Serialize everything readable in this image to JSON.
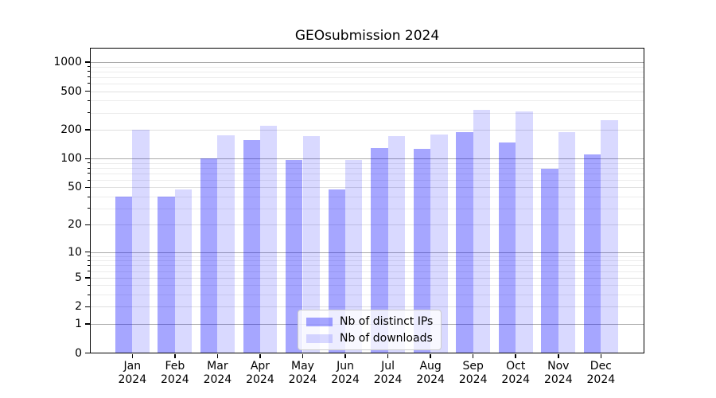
{
  "figure": {
    "title": "GEOsubmission 2024",
    "background": "#ffffff"
  },
  "chart_data": {
    "type": "bar",
    "title": "GEOsubmission 2024",
    "categories": [
      "Jan",
      "Feb",
      "Mar",
      "Apr",
      "May",
      "Jun",
      "Jul",
      "Aug",
      "Sep",
      "Oct",
      "Nov",
      "Dec"
    ],
    "year_label": "2024",
    "series": [
      {
        "key": "distinct-ips",
        "name": "Nb of distinct IPs",
        "color": "rgba(0,0,255,0.35)",
        "values": [
          40,
          40,
          100,
          155,
          96,
          48,
          128,
          126,
          190,
          148,
          78,
          110
        ]
      },
      {
        "key": "downloads",
        "name": "Nb of downloads",
        "color": "rgba(0,0,255,0.15)",
        "values": [
          200,
          48,
          175,
          220,
          170,
          96,
          173,
          178,
          318,
          308,
          190,
          252
        ]
      }
    ],
    "xlabel": "",
    "ylabel": "",
    "y_scale": "log10(value+1)",
    "y_ticks_labeled": [
      0,
      1,
      2,
      5,
      10,
      20,
      50,
      100,
      200,
      500,
      1000
    ],
    "y_gridlines_major": [
      1,
      10,
      100,
      1000
    ],
    "y_gridlines_sub": [
      2,
      5,
      20,
      50,
      200,
      500
    ],
    "y_gridlines_minor": [
      3,
      4,
      6,
      7,
      8,
      9,
      30,
      40,
      60,
      70,
      80,
      90,
      300,
      400,
      600,
      700,
      800,
      900
    ],
    "ylim": [
      0,
      1410
    ],
    "grid": true,
    "legend_position": "lower center"
  },
  "legend": {
    "items": [
      {
        "label": "Nb of distinct IPs"
      },
      {
        "label": "Nb of downloads"
      }
    ]
  },
  "colors": {
    "bar_distinct_ips": "rgba(0,0,255,0.35)",
    "bar_downloads": "rgba(0,0,255,0.15)",
    "grid_major": "#ababab",
    "grid_sub": "#dfdfdf",
    "grid_minor": "#ececec",
    "axis": "#000000",
    "legend_border": "#cccccc"
  }
}
